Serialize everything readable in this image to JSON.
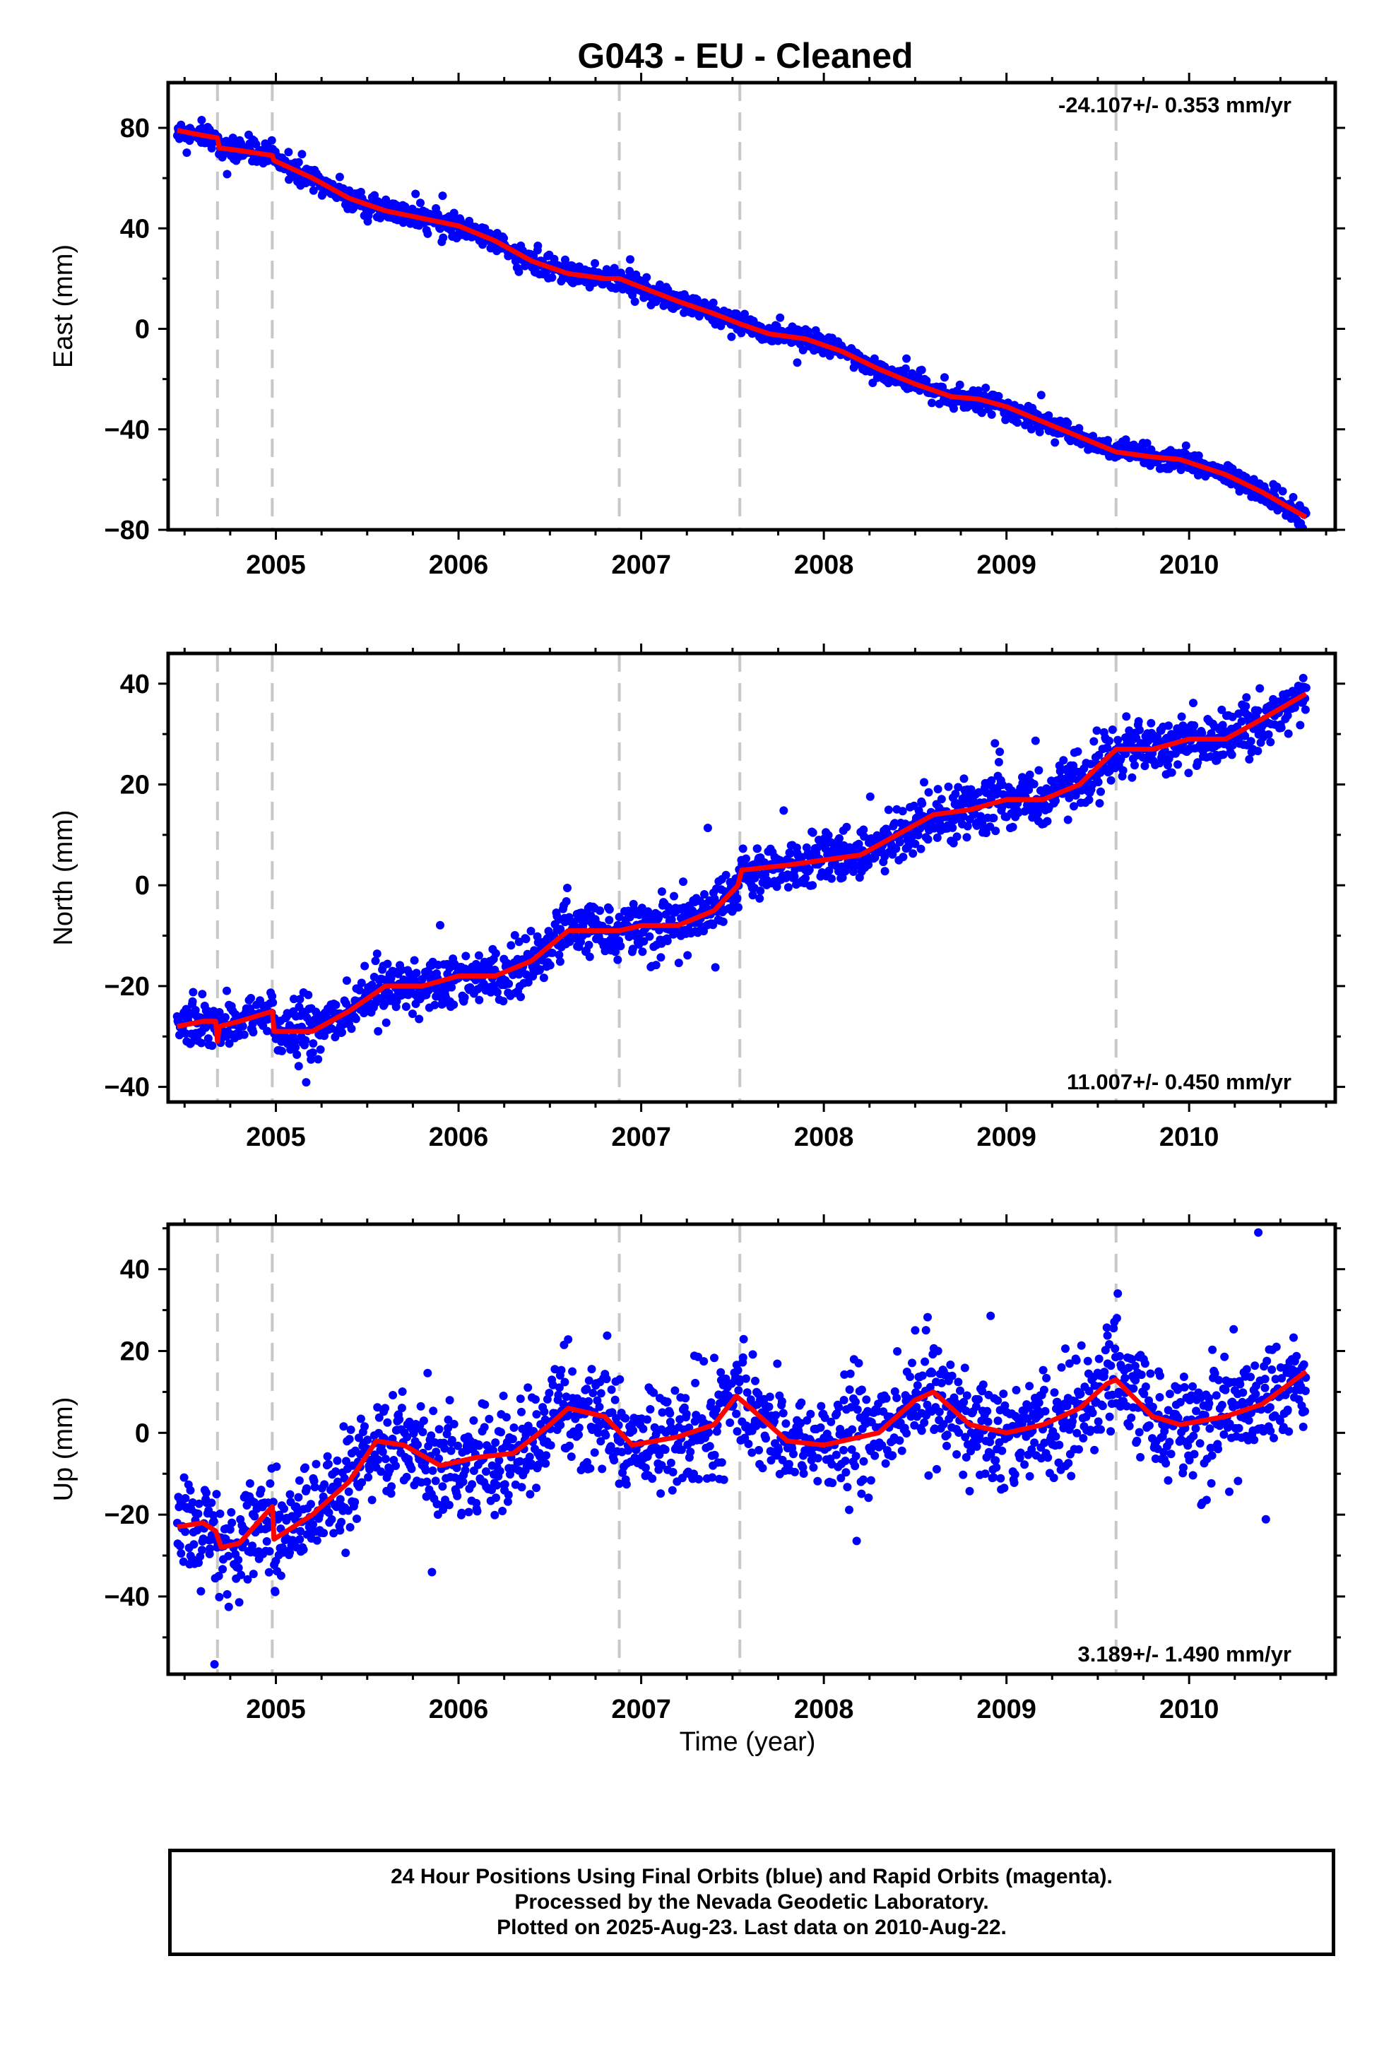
{
  "title": "G043  - EU - Cleaned",
  "xlabel": "Time (year)",
  "footer": {
    "lines": [
      "24 Hour Positions Using Final Orbits (blue) and Rapid Orbits (magenta).",
      "Processed by the Nevada Geodetic Laboratory.",
      "Plotted on 2025-Aug-23. Last data on 2010-Aug-22."
    ]
  },
  "colors": {
    "data": "#0000ff",
    "model": "#ff0000",
    "events": "#c8c8c8",
    "frame": "#000000"
  },
  "chart_data": [
    {
      "type": "scatter",
      "component": "east",
      "ylabel": "East (mm)",
      "rate": "-24.107+/- 0.353 mm/yr",
      "xlim": [
        2004.41,
        2010.8
      ],
      "ylim": [
        -80,
        98
      ],
      "yticks": [
        -80,
        -40,
        0,
        40,
        80
      ],
      "xticks": [
        2005,
        2006,
        2007,
        2008,
        2009,
        2010
      ],
      "events": [
        2004.68,
        2004.98,
        2006.88,
        2007.54,
        2009.6
      ],
      "model_x": [
        2004.46,
        2004.6,
        2004.68,
        2004.69,
        2004.8,
        2004.98,
        2004.99,
        2005.2,
        2005.4,
        2005.6,
        2005.8,
        2006.0,
        2006.2,
        2006.4,
        2006.6,
        2006.8,
        2006.88,
        2006.95,
        2007.2,
        2007.4,
        2007.54,
        2007.7,
        2007.9,
        2008.1,
        2008.3,
        2008.5,
        2008.7,
        2008.85,
        2009.0,
        2009.2,
        2009.4,
        2009.6,
        2009.8,
        2009.95,
        2010.2,
        2010.4,
        2010.64
      ],
      "model_y": [
        79,
        77,
        76,
        72,
        71,
        69,
        67,
        60,
        52,
        47,
        44,
        41,
        35,
        27,
        22,
        20,
        20,
        18,
        11,
        6,
        2,
        -2,
        -4,
        -9,
        -16,
        -22,
        -27,
        -28,
        -31,
        -37,
        -43,
        -49,
        -51,
        -52,
        -58,
        -65,
        -75
      ],
      "noise": 2.0
    },
    {
      "type": "scatter",
      "component": "north",
      "ylabel": "North (mm)",
      "rate": "11.007+/- 0.450 mm/yr",
      "xlim": [
        2004.41,
        2010.8
      ],
      "ylim": [
        -43,
        46
      ],
      "yticks": [
        -40,
        -20,
        0,
        20,
        40
      ],
      "xticks": [
        2005,
        2006,
        2007,
        2008,
        2009,
        2010
      ],
      "events": [
        2004.68,
        2004.98,
        2006.88,
        2007.54,
        2009.6
      ],
      "model_x": [
        2004.46,
        2004.6,
        2004.67,
        2004.68,
        2004.69,
        2004.8,
        2004.98,
        2004.99,
        2005.2,
        2005.4,
        2005.6,
        2005.8,
        2006.0,
        2006.2,
        2006.4,
        2006.6,
        2006.88,
        2007.0,
        2007.2,
        2007.4,
        2007.53,
        2007.55,
        2007.8,
        2008.0,
        2008.2,
        2008.4,
        2008.6,
        2008.8,
        2009.0,
        2009.2,
        2009.4,
        2009.6,
        2009.8,
        2010.0,
        2010.2,
        2010.4,
        2010.64
      ],
      "model_y": [
        -28,
        -27,
        -27,
        -31,
        -28,
        -27,
        -25,
        -29,
        -29,
        -25,
        -20,
        -20,
        -18,
        -18,
        -15,
        -9,
        -9,
        -8,
        -8,
        -5,
        0,
        3,
        4,
        5,
        6,
        10,
        14,
        15,
        17,
        17,
        20,
        27,
        27,
        29,
        29,
        33,
        38
      ],
      "noise": 2.6
    },
    {
      "type": "scatter",
      "component": "up",
      "ylabel": "Up (mm)",
      "rate": "3.189+/- 1.490 mm/yr",
      "xlim": [
        2004.41,
        2010.8
      ],
      "ylim": [
        -59,
        51
      ],
      "yticks": [
        -40,
        -20,
        0,
        20,
        40
      ],
      "xticks": [
        2005,
        2006,
        2007,
        2008,
        2009,
        2010
      ],
      "events": [
        2004.68,
        2004.98,
        2006.88,
        2007.54,
        2009.6
      ],
      "model_x": [
        2004.46,
        2004.6,
        2004.67,
        2004.7,
        2004.8,
        2004.98,
        2004.99,
        2005.2,
        2005.4,
        2005.55,
        2005.7,
        2005.9,
        2006.1,
        2006.3,
        2006.5,
        2006.6,
        2006.8,
        2006.95,
        2007.2,
        2007.4,
        2007.52,
        2007.6,
        2007.8,
        2008.0,
        2008.3,
        2008.5,
        2008.6,
        2008.8,
        2009.0,
        2009.2,
        2009.4,
        2009.55,
        2009.6,
        2009.8,
        2009.95,
        2010.2,
        2010.4,
        2010.64
      ],
      "model_y": [
        -23,
        -22,
        -24,
        -28,
        -27,
        -18,
        -26,
        -20,
        -12,
        -2,
        -3,
        -8,
        -6,
        -5,
        2,
        6,
        4,
        -3,
        -1,
        2,
        9,
        6,
        -2,
        -3,
        0,
        8,
        10,
        2,
        0,
        2,
        6,
        12,
        13,
        4,
        2,
        4,
        7,
        15
      ],
      "noise": 6.5
    }
  ]
}
